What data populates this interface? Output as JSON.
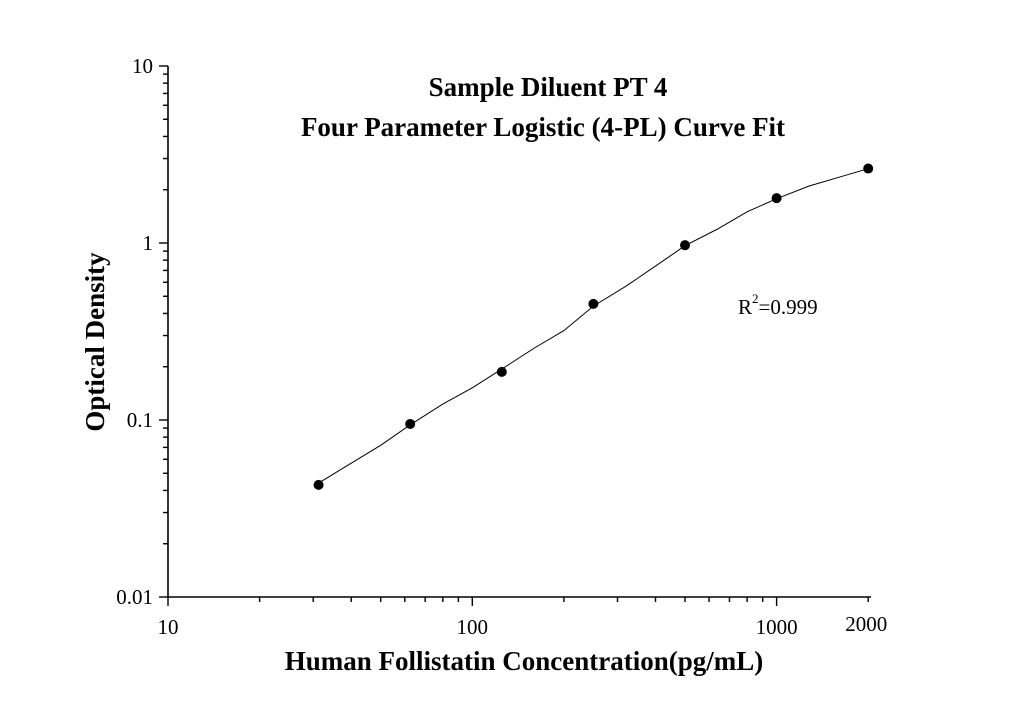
{
  "chart_data": {
    "type": "scatter",
    "title": "Sample Diluent PT 4",
    "subtitle": "Four Parameter Logistic (4-PL) Curve Fit",
    "xlabel": "Human Follistatin Concentration(pg/mL)",
    "ylabel": "Optical Density",
    "x_scale": "log",
    "y_scale": "log",
    "xlim": [
      10,
      2000
    ],
    "ylim": [
      0.01,
      10
    ],
    "x_tick_labels": [
      "10",
      "100",
      "1000",
      "2000"
    ],
    "x_tick_values": [
      10,
      100,
      1000,
      2000
    ],
    "y_tick_labels": [
      "0.01",
      "0.1",
      "1",
      "10"
    ],
    "y_tick_values": [
      0.01,
      0.1,
      1,
      10
    ],
    "grid": false,
    "legend": "none",
    "annotation": {
      "prefix": "R",
      "superscript": "2",
      "suffix": "=0.999"
    },
    "points": {
      "x": [
        31.25,
        62.5,
        125,
        250,
        500,
        1000,
        2000
      ],
      "y": [
        0.043,
        0.095,
        0.187,
        0.453,
        0.972,
        1.792,
        2.634
      ]
    },
    "fit": {
      "model": "4-PL",
      "x": [
        31.25,
        40,
        50,
        62.5,
        80,
        100,
        125,
        160,
        200,
        250,
        320,
        400,
        500,
        640,
        800,
        1000,
        1280,
        1600,
        2000
      ],
      "y": [
        0.044,
        0.057,
        0.072,
        0.094,
        0.123,
        0.152,
        0.194,
        0.255,
        0.32,
        0.44,
        0.57,
        0.74,
        0.965,
        1.2,
        1.5,
        1.78,
        2.1,
        2.35,
        2.63
      ]
    },
    "colors": {
      "points": "#000000",
      "curve": "#000000",
      "axes": "#000000"
    }
  }
}
